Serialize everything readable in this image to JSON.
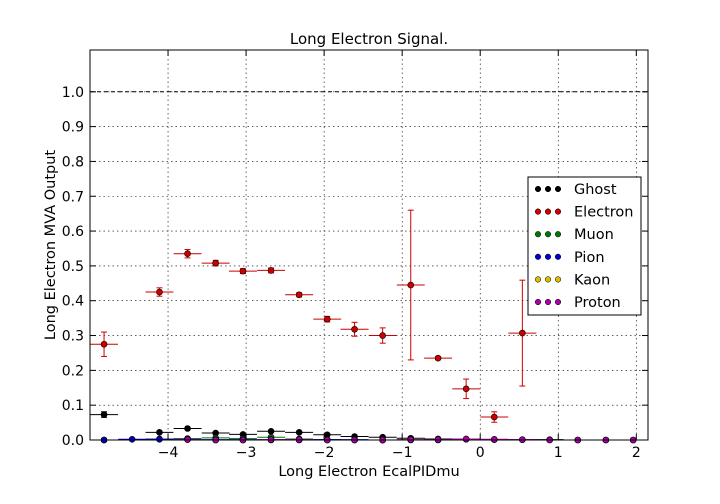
{
  "chart_data": {
    "type": "scatter",
    "title": "Long Electron Signal.",
    "xlabel": "Long Electron EcalPIDmu",
    "ylabel": "Long Electron MVA Output",
    "xlim": [
      -5.0,
      2.15
    ],
    "ylim": [
      0.0,
      1.12
    ],
    "x_ticks": [
      -4,
      -3,
      -2,
      -1,
      0,
      1,
      2
    ],
    "x_tick_labels": [
      "−4",
      "−3",
      "−2",
      "−1",
      "0",
      "1",
      "2"
    ],
    "y_ticks": [
      0.0,
      0.1,
      0.2,
      0.3,
      0.4,
      0.5,
      0.6,
      0.7,
      0.8,
      0.9,
      1.0
    ],
    "y_tick_labels": [
      "0.0",
      "0.1",
      "0.2",
      "0.3",
      "0.4",
      "0.5",
      "0.6",
      "0.7",
      "0.8",
      "0.9",
      "1.0"
    ],
    "grid": true,
    "reference_line": {
      "y": 1.0,
      "style": "dashed"
    },
    "legend_position": "right",
    "bin_half_width": 0.179,
    "series": [
      {
        "name": "Ghost",
        "color": "#000000",
        "x": [
          -4.82,
          -4.11,
          -3.75,
          -3.39,
          -3.04,
          -2.68,
          -2.32,
          -1.96,
          -1.61,
          -1.25,
          -0.89,
          -0.54,
          -0.18,
          0.18,
          0.54,
          0.89,
          1.25,
          1.61,
          1.96
        ],
        "y": [
          0.073,
          0.022,
          0.033,
          0.02,
          0.016,
          0.025,
          0.022,
          0.015,
          0.01,
          0.008,
          0.005,
          0.003,
          0.002,
          0.001,
          0.001,
          0.001,
          0.0,
          0.0,
          0.0
        ],
        "yerr": [
          0.008,
          0.003,
          0.003,
          0.002,
          0.002,
          0.002,
          0.002,
          0.002,
          0.001,
          0.001,
          0.001,
          0.001,
          0.001,
          0.0,
          0.0,
          0.0,
          0.0,
          0.0,
          0.0
        ]
      },
      {
        "name": "Electron",
        "color": "#cc0000",
        "x": [
          -4.82,
          -4.11,
          -3.75,
          -3.39,
          -3.04,
          -2.68,
          -2.32,
          -1.96,
          -1.61,
          -1.25,
          -0.89,
          -0.54,
          -0.18,
          0.18,
          0.54
        ],
        "y": [
          0.275,
          0.425,
          0.535,
          0.508,
          0.485,
          0.487,
          0.417,
          0.347,
          0.318,
          0.3,
          0.445,
          0.235,
          0.147,
          0.066,
          0.307
        ],
        "yerr": [
          0.035,
          0.012,
          0.012,
          0.008,
          0.007,
          0.007,
          0.006,
          0.008,
          0.02,
          0.022,
          0.215,
          0.004,
          0.028,
          0.015,
          0.152
        ]
      },
      {
        "name": "Muon",
        "color": "#007700",
        "x": [
          -4.82,
          -4.11,
          -3.75,
          -3.39,
          -3.04,
          -2.68,
          -2.32,
          -1.96
        ],
        "y": [
          0.0,
          0.003,
          0.004,
          0.006,
          0.004,
          0.008,
          0.003,
          0.001
        ],
        "yerr": [
          0.0,
          0.001,
          0.001,
          0.001,
          0.001,
          0.002,
          0.001,
          0.001
        ]
      },
      {
        "name": "Pion",
        "color": "#0000cc",
        "x": [
          -4.82,
          -4.46,
          -4.11,
          -3.75,
          -3.39,
          -3.04,
          -2.68,
          -2.32,
          -1.96,
          -1.61,
          -1.25,
          -0.89,
          -0.54
        ],
        "y": [
          0.0,
          0.002,
          0.002,
          0.002,
          0.001,
          0.001,
          0.001,
          0.001,
          0.001,
          0.001,
          0.0,
          0.0,
          0.0
        ],
        "yerr": [
          0.0,
          0.0,
          0.0,
          0.0,
          0.0,
          0.0,
          0.0,
          0.0,
          0.0,
          0.0,
          0.0,
          0.0,
          0.0
        ]
      },
      {
        "name": "Kaon",
        "color": "#ddbb00",
        "x": [
          -3.39,
          -3.04,
          -2.68,
          -2.32,
          -1.96,
          -1.61,
          -1.25
        ],
        "y": [
          0.0,
          0.0,
          0.0,
          0.0,
          0.0,
          0.0,
          0.0
        ],
        "yerr": [
          0.0,
          0.0,
          0.0,
          0.0,
          0.0,
          0.0,
          0.0
        ]
      },
      {
        "name": "Proton",
        "color": "#aa00aa",
        "x": [
          -3.75,
          -3.39,
          -3.04,
          -2.68,
          -2.32,
          -1.96,
          -1.61,
          -1.25,
          -0.89,
          -0.54,
          -0.18,
          0.18,
          0.54,
          0.89,
          1.25,
          1.61,
          1.96
        ],
        "y": [
          0.001,
          0.0,
          0.0,
          0.001,
          0.001,
          0.0,
          0.0,
          0.0,
          0.001,
          0.001,
          0.003,
          0.002,
          0.001,
          0.0,
          0.0,
          0.0,
          0.0
        ],
        "yerr": [
          0.0,
          0.0,
          0.0,
          0.0,
          0.0,
          0.0,
          0.0,
          0.0,
          0.0,
          0.0,
          0.001,
          0.0,
          0.0,
          0.0,
          0.0,
          0.0,
          0.0
        ]
      }
    ]
  }
}
